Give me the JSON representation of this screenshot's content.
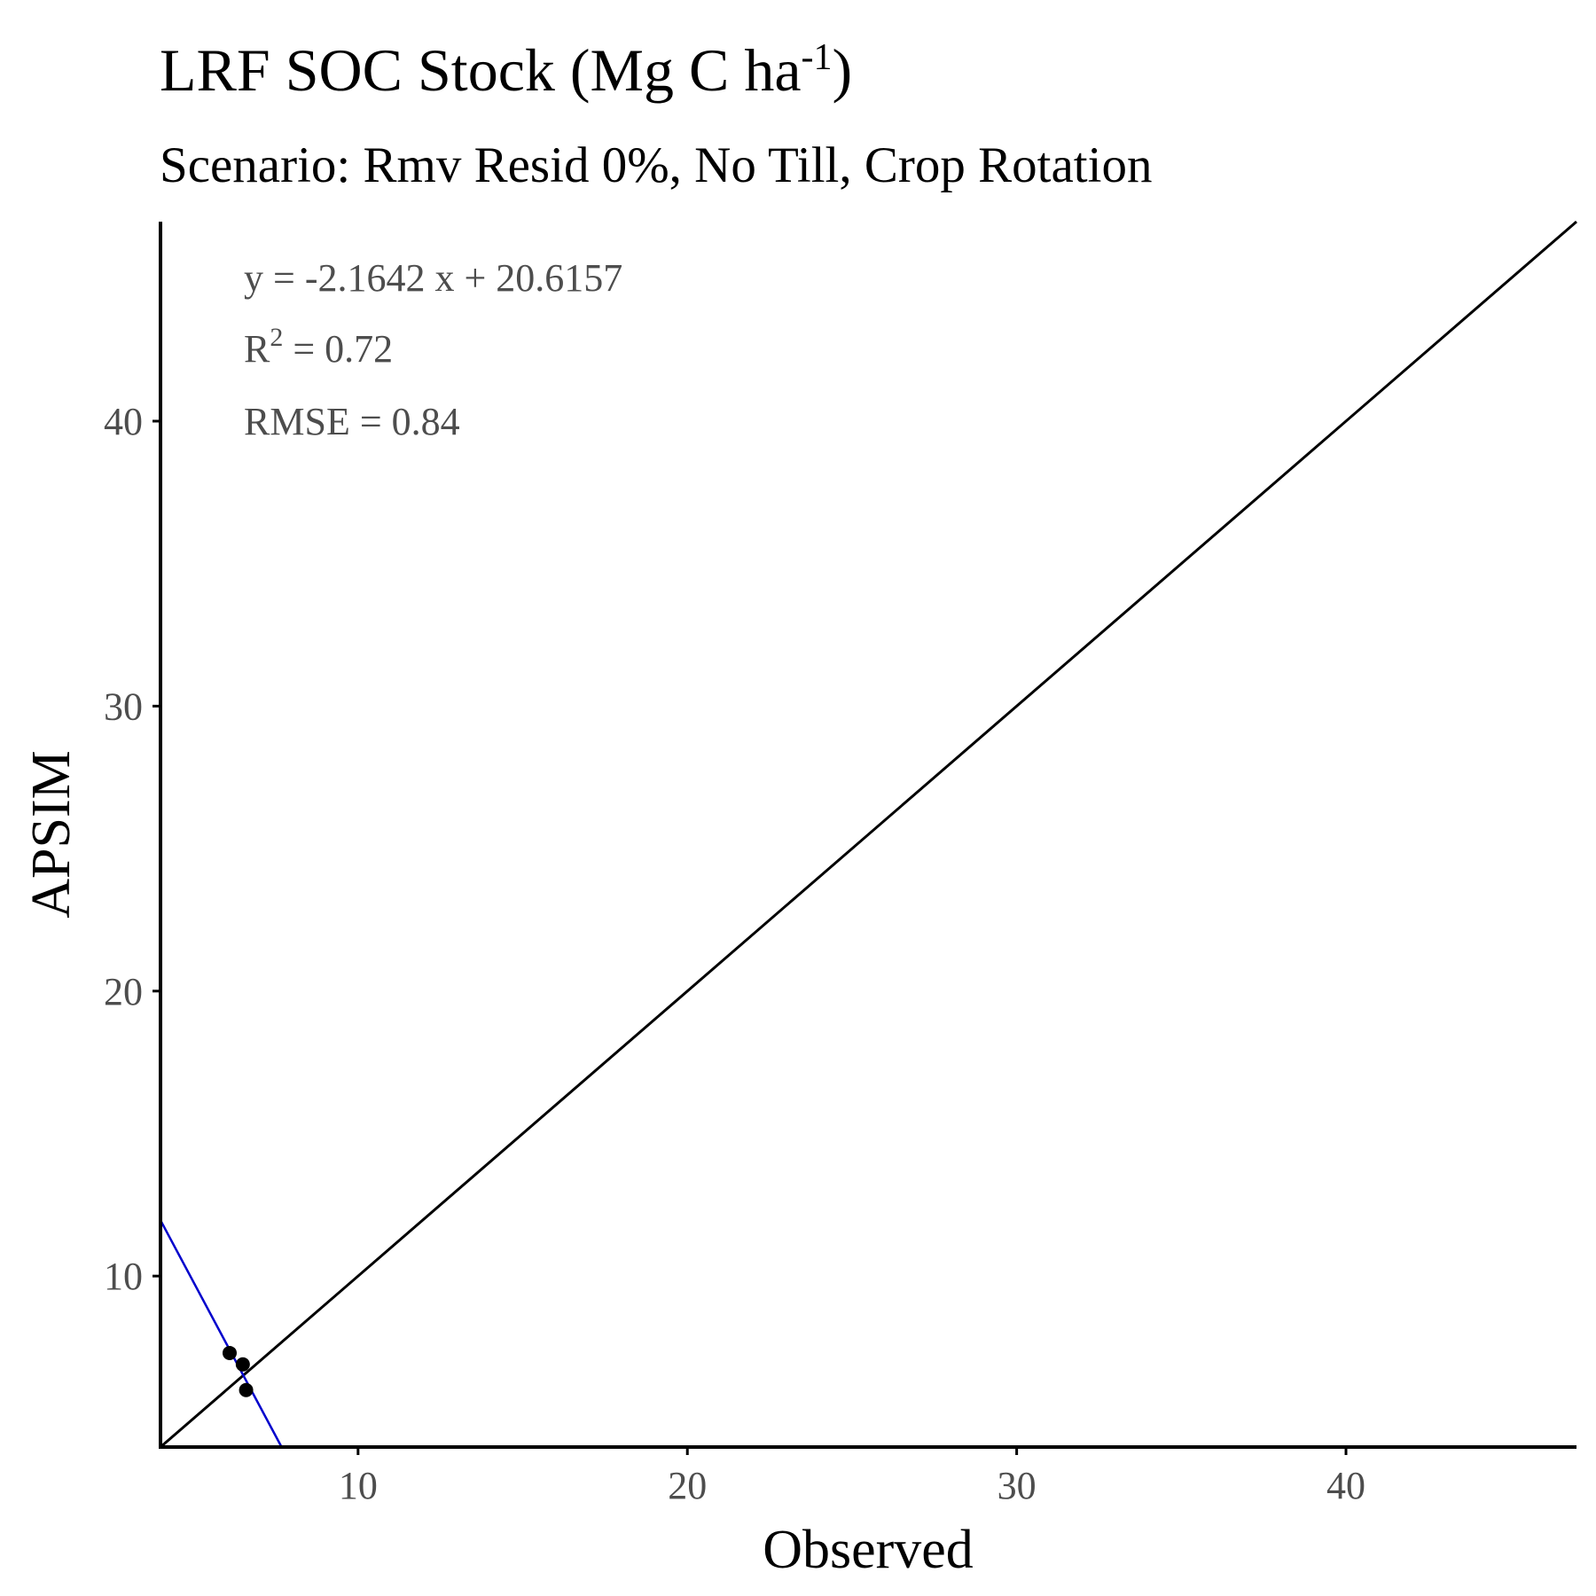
{
  "chart_data": {
    "type": "scatter",
    "title": "LRF SOC Stock (Mg C ha",
    "title_superscript": "-1",
    "title_suffix": ")",
    "subtitle": "Scenario: Rmv Resid 0%, No Till, Crop Rotation",
    "xlabel": "Observed",
    "ylabel": "APSIM",
    "xlim": [
      4,
      47
    ],
    "ylim": [
      4,
      47
    ],
    "x_ticks": [
      10,
      20,
      30,
      40
    ],
    "y_ticks": [
      10,
      20,
      30,
      40
    ],
    "points": [
      {
        "x": 6.1,
        "y": 7.3
      },
      {
        "x": 6.5,
        "y": 6.9
      },
      {
        "x": 6.6,
        "y": 6.0
      }
    ],
    "reference_line": {
      "slope": 1,
      "intercept": 0,
      "color": "#000000"
    },
    "fit_line": {
      "slope": -2.1642,
      "intercept": 20.6157,
      "color": "#0000cc"
    },
    "annotations": {
      "equation": "y = -2.1642 x +  20.6157",
      "r2_label": "R",
      "r2_superscript": "2",
      "r2_value": " = 0.72",
      "rmse": "RMSE = 0.84"
    },
    "grid": false,
    "legend": "none",
    "point_color": "#000000"
  }
}
